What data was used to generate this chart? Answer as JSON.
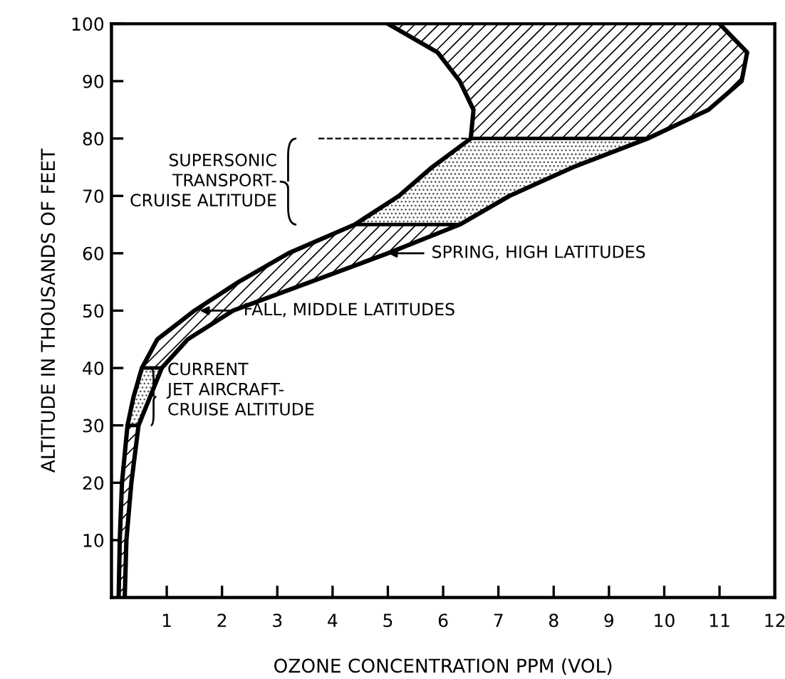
{
  "chart_data": {
    "type": "line",
    "xlabel": "OZONE CONCENTRATION PPM (VOL)",
    "ylabel": "ALTITUDE IN THOUSANDS OF FEET",
    "series": [
      {
        "color": "#000000",
        "x": [
          0.13,
          0.15,
          0.19,
          0.29,
          0.4,
          0.55,
          0.83,
          1.5,
          2.3,
          3.2,
          4.4,
          5.2,
          5.8,
          6.5,
          6.55,
          6.3,
          5.9,
          5.0
        ],
        "values": [
          0,
          10,
          20,
          30,
          35,
          40,
          45,
          50,
          55,
          60,
          65,
          70,
          75,
          80,
          85,
          90,
          95,
          100
        ]
      },
      {
        "color": "#000000",
        "x": [
          0.24,
          0.27,
          0.36,
          0.49,
          0.7,
          0.91,
          1.38,
          2.2,
          3.6,
          5.0,
          6.3,
          7.2,
          8.35,
          9.7,
          10.8,
          11.4,
          11.5,
          11.0
        ],
        "values": [
          0,
          10,
          20,
          30,
          35,
          40,
          45,
          50,
          55,
          60,
          65,
          70,
          75,
          80,
          85,
          90,
          95,
          100
        ]
      }
    ],
    "bands": [
      {
        "axis": "y",
        "from": 65,
        "to": 80,
        "label": "SUPERSONIC\nTRANSPORT-\nCRUISE ALTITUDE"
      },
      {
        "axis": "y",
        "from": 30,
        "to": 40,
        "label": "CURRENT\nJET AIRCRAFT-\nCRUISE ALTITUDE"
      }
    ],
    "annotations": [
      {
        "text": "SPRING, HIGH LATITUDES",
        "x": 5.0,
        "y": 60
      },
      {
        "text": "FALL, MIDDLE LATITUDES",
        "x": 1.6,
        "y": 50
      }
    ],
    "xlim": [
      0,
      12
    ],
    "ylim": [
      0,
      100
    ],
    "xticks": [
      1,
      2,
      3,
      4,
      5,
      6,
      7,
      8,
      9,
      10,
      11,
      12
    ],
    "yticks": [
      10,
      20,
      30,
      40,
      50,
      60,
      70,
      80,
      90,
      100
    ],
    "grid": false,
    "legend": false,
    "marker": "none",
    "line_style": "solid"
  }
}
